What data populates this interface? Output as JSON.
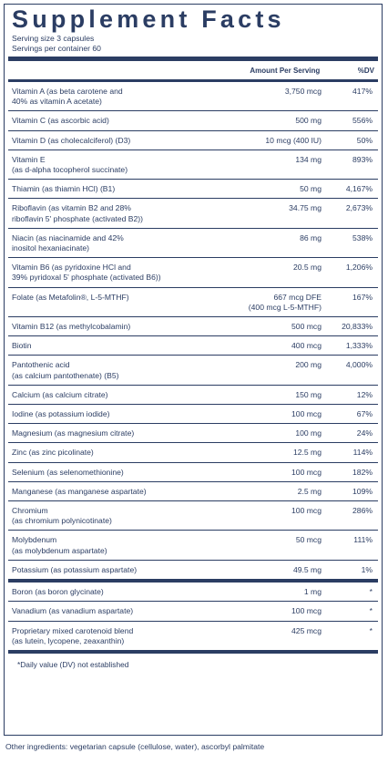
{
  "title": "Supplement Facts",
  "serving_size": "Serving size 3 capsules",
  "servings_per_container": "Servings per container  60",
  "header": {
    "amount": "Amount Per Serving",
    "dv": "%DV"
  },
  "rows": [
    {
      "name": "Vitamin A (as beta carotene and\n40% as vitamin A acetate)",
      "amount": "3,750 mcg",
      "dv": "417%"
    },
    {
      "name": "Vitamin C (as ascorbic acid)",
      "amount": "500 mg",
      "dv": "556%"
    },
    {
      "name": "Vitamin D (as cholecalciferol) (D3)",
      "amount": "10 mcg (400 IU)",
      "dv": "50%"
    },
    {
      "name": "Vitamin E\n(as d-alpha tocopherol succinate)",
      "amount": "134 mg",
      "dv": "893%"
    },
    {
      "name": "Thiamin (as thiamin HCl) (B1)",
      "amount": "50 mg",
      "dv": "4,167%"
    },
    {
      "name": "Riboflavin (as vitamin B2 and 28%\nriboflavin 5' phosphate (activated B2))",
      "amount": "34.75 mg",
      "dv": "2,673%"
    },
    {
      "name": "Niacin (as niacinamide and 42%\ninositol hexaniacinate)",
      "amount": "86 mg",
      "dv": "538%"
    },
    {
      "name": "Vitamin B6 (as pyridoxine HCl and\n39% pyridoxal 5' phosphate (activated B6))",
      "amount": "20.5 mg",
      "dv": "1,206%"
    },
    {
      "name": "Folate (as Metafolin®, L-5-MTHF)",
      "amount": "667 mcg DFE\n(400 mcg L-5-MTHF)",
      "dv": "167%"
    },
    {
      "name": "Vitamin B12 (as methylcobalamin)",
      "amount": "500 mcg",
      "dv": "20,833%"
    },
    {
      "name": "Biotin",
      "amount": "400 mcg",
      "dv": "1,333%"
    },
    {
      "name": "Pantothenic acid\n(as calcium pantothenate) (B5)",
      "amount": "200 mg",
      "dv": "4,000%"
    },
    {
      "name": "Calcium (as calcium citrate)",
      "amount": "150 mg",
      "dv": "12%"
    },
    {
      "name": "Iodine (as potassium iodide)",
      "amount": "100 mcg",
      "dv": "67%"
    },
    {
      "name": "Magnesium (as magnesium citrate)",
      "amount": "100 mg",
      "dv": "24%"
    },
    {
      "name": "Zinc (as zinc picolinate)",
      "amount": "12.5 mg",
      "dv": "114%"
    },
    {
      "name": "Selenium (as selenomethionine)",
      "amount": "100 mcg",
      "dv": "182%"
    },
    {
      "name": "Manganese (as manganese aspartate)",
      "amount": "2.5 mg",
      "dv": "109%"
    },
    {
      "name": "Chromium\n(as chromium polynicotinate)",
      "amount": "100 mcg",
      "dv": "286%"
    },
    {
      "name": "Molybdenum\n(as molybdenum aspartate)",
      "amount": "50 mcg",
      "dv": "111%"
    },
    {
      "name": "Potassium (as potassium aspartate)",
      "amount": "49.5 mg",
      "dv": "1%"
    },
    {
      "name": "Boron (as boron glycinate)",
      "amount": "1 mg",
      "dv": "*"
    },
    {
      "name": "Vanadium (as vanadium aspartate)",
      "amount": "100 mcg",
      "dv": "*"
    },
    {
      "name": "Proprietary mixed carotenoid blend\n(as lutein, lycopene, zeaxanthin)",
      "amount": "425 mcg",
      "dv": "*"
    }
  ],
  "footnote": "*Daily value (DV) not established",
  "other_ingredients": "Other ingredients: vegetarian capsule (cellulose, water), ascorbyl palmitate",
  "colors": {
    "ink": "#2b3d63"
  }
}
